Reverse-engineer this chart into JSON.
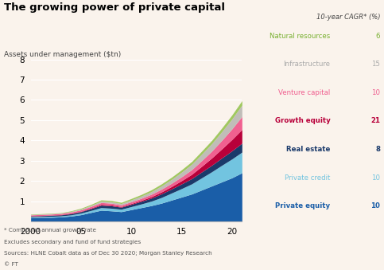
{
  "title": "The growing power of private capital",
  "ylabel": "Assets under management ($tn)",
  "cagr_label": "10-year CAGR* (%)",
  "background_color": "#faf3ec",
  "xlim": [
    2000,
    2021
  ],
  "ylim": [
    0,
    8
  ],
  "yticks": [
    0,
    1,
    2,
    3,
    4,
    5,
    6,
    7,
    8
  ],
  "xticks": [
    2000,
    2005,
    2010,
    2015,
    2020
  ],
  "xticklabels": [
    "2000",
    "05",
    "10",
    "15",
    "20"
  ],
  "footnotes": [
    "* Compound annual growth rate",
    "Excludes secondary and fund of fund strategies",
    "Sources: HLNE Cobalt data as of Dec 30 2020; Morgan Stanley Research",
    "© FT"
  ],
  "series": [
    {
      "name": "Private equity",
      "cagr": "10",
      "color": "#1a5ea8",
      "label_color": "#1a5ea8",
      "cagr_bold": true
    },
    {
      "name": "Private credit",
      "cagr": "10",
      "color": "#72c4e0",
      "label_color": "#72c4e0",
      "cagr_bold": false
    },
    {
      "name": "Real estate",
      "cagr": "8",
      "color": "#1a3a6b",
      "label_color": "#1a3a6b",
      "cagr_bold": true
    },
    {
      "name": "Growth equity",
      "cagr": "21",
      "color": "#b8003a",
      "label_color": "#b8003a",
      "cagr_bold": true
    },
    {
      "name": "Venture capital",
      "cagr": "10",
      "color": "#f06090",
      "label_color": "#f06090",
      "cagr_bold": false
    },
    {
      "name": "Infrastructure",
      "cagr": "15",
      "color": "#c0bdb8",
      "label_color": "#aaaaaa",
      "cagr_bold": false
    },
    {
      "name": "Natural resources",
      "cagr": "6",
      "color": "#a0c860",
      "label_color": "#78b030",
      "cagr_bold": false
    }
  ],
  "years": [
    2000,
    2001,
    2002,
    2003,
    2004,
    2005,
    2006,
    2007,
    2008,
    2009,
    2010,
    2011,
    2012,
    2013,
    2014,
    2015,
    2016,
    2017,
    2018,
    2019,
    2020,
    2021
  ],
  "data": {
    "Private equity": [
      0.18,
      0.2,
      0.2,
      0.22,
      0.26,
      0.33,
      0.44,
      0.55,
      0.52,
      0.48,
      0.58,
      0.68,
      0.78,
      0.9,
      1.05,
      1.2,
      1.35,
      1.55,
      1.75,
      1.95,
      2.15,
      2.4
    ],
    "Private credit": [
      0.04,
      0.04,
      0.05,
      0.05,
      0.06,
      0.08,
      0.1,
      0.13,
      0.13,
      0.12,
      0.15,
      0.18,
      0.22,
      0.28,
      0.35,
      0.42,
      0.5,
      0.6,
      0.7,
      0.82,
      0.93,
      1.02
    ],
    "Real estate": [
      0.04,
      0.04,
      0.05,
      0.05,
      0.06,
      0.07,
      0.09,
      0.12,
      0.12,
      0.1,
      0.11,
      0.13,
      0.15,
      0.18,
      0.2,
      0.23,
      0.26,
      0.29,
      0.32,
      0.36,
      0.4,
      0.44
    ],
    "Growth equity": [
      0.01,
      0.01,
      0.01,
      0.02,
      0.02,
      0.02,
      0.03,
      0.04,
      0.04,
      0.03,
      0.04,
      0.05,
      0.07,
      0.09,
      0.12,
      0.16,
      0.21,
      0.28,
      0.36,
      0.45,
      0.56,
      0.68
    ],
    "Venture capital": [
      0.05,
      0.05,
      0.05,
      0.05,
      0.06,
      0.07,
      0.08,
      0.09,
      0.09,
      0.08,
      0.09,
      0.1,
      0.12,
      0.14,
      0.16,
      0.19,
      0.23,
      0.28,
      0.34,
      0.42,
      0.52,
      0.64
    ],
    "Infrastructure": [
      0.02,
      0.02,
      0.02,
      0.02,
      0.03,
      0.04,
      0.05,
      0.07,
      0.07,
      0.07,
      0.09,
      0.11,
      0.13,
      0.16,
      0.19,
      0.23,
      0.27,
      0.32,
      0.37,
      0.43,
      0.49,
      0.56
    ],
    "Natural resources": [
      0.02,
      0.02,
      0.02,
      0.02,
      0.03,
      0.04,
      0.05,
      0.06,
      0.06,
      0.06,
      0.07,
      0.08,
      0.09,
      0.1,
      0.11,
      0.12,
      0.13,
      0.15,
      0.16,
      0.18,
      0.2,
      0.22
    ]
  }
}
